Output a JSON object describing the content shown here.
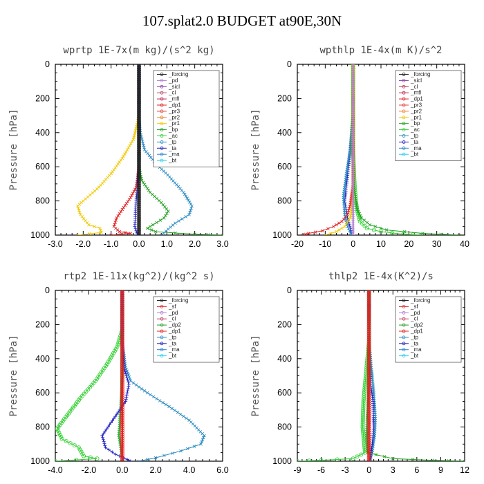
{
  "figure_title": "107.splat2.0  BUDGET at90E,30N",
  "chart_data": [
    {
      "type": "line",
      "title": "wprtp  1E-7x(m kg)/(s^2 kg)",
      "ylabel": "Pressure [hPa]",
      "xlim": [
        -3,
        3
      ],
      "ylim": [
        1000,
        0
      ],
      "xticks": [
        -3,
        -2,
        -1,
        0,
        1,
        2,
        3
      ],
      "xtick_labels": [
        "-3.0",
        "-2.0",
        "-1.0",
        "0.0",
        "1.0",
        "2.0",
        "3.0"
      ],
      "yticks": [
        0,
        200,
        400,
        600,
        800,
        1000
      ],
      "ytick_labels": [
        "0",
        "200",
        "400",
        "600",
        "800",
        "1000"
      ],
      "legend": [
        "_forcing",
        "_pd",
        "_sicl",
        "_cl",
        "_mfl",
        "_dp1",
        "_pr3",
        "_pr2",
        "_pr1",
        "_bp",
        "_ac",
        "_tp",
        "_ta",
        "_ma",
        "_bt"
      ],
      "series": [
        {
          "name": "_forcing",
          "color": "#222222",
          "marker": "circle",
          "x": [
            0,
            0
          ],
          "y": [
            0,
            1000
          ]
        },
        {
          "name": "_pr1",
          "color": "#f0c800",
          "marker": "x",
          "x": [
            0,
            0,
            -0.05,
            -0.2,
            -0.6,
            -1.0,
            -1.5,
            -2.0,
            -2.2,
            -2.1,
            -1.8,
            -1.4,
            -1.35,
            -2.2
          ],
          "y": [
            0,
            270,
            340,
            440,
            550,
            640,
            730,
            800,
            830,
            880,
            940,
            960,
            985,
            1000
          ]
        },
        {
          "name": "_dp1",
          "color": "#e02020",
          "marker": "x",
          "x": [
            0,
            0,
            -0.1,
            -0.3,
            -0.6,
            -0.8,
            -0.9,
            -0.7,
            -0.3,
            -1.0
          ],
          "y": [
            0,
            600,
            720,
            780,
            850,
            900,
            950,
            980,
            990,
            1000
          ]
        },
        {
          "name": "_bp",
          "color": "#20a020",
          "marker": "x",
          "x": [
            0,
            0,
            0.1,
            0.4,
            0.8,
            1.05,
            0.9,
            0.5,
            0.3,
            0.6,
            2.0,
            3.0
          ],
          "y": [
            0,
            600,
            680,
            750,
            810,
            860,
            900,
            940,
            960,
            980,
            995,
            1000
          ]
        },
        {
          "name": "_tp",
          "color": "#2a8ac0",
          "marker": "x",
          "x": [
            0,
            0,
            0.05,
            0.2,
            0.6,
            1.1,
            1.6,
            1.9,
            1.8,
            1.3,
            0.8
          ],
          "y": [
            0,
            300,
            400,
            500,
            580,
            660,
            750,
            830,
            880,
            930,
            1000
          ]
        },
        {
          "name": "_ta",
          "color": "#2020c0",
          "marker": "plus",
          "x": [
            0,
            0,
            -0.1,
            -0.15,
            -0.05
          ],
          "y": [
            0,
            600,
            800,
            950,
            1000
          ]
        }
      ]
    },
    {
      "type": "line",
      "title": "wpthlp  1E-4x(m K)/s^2",
      "ylabel": "Pressure [hPa]",
      "xlim": [
        -20,
        40
      ],
      "ylim": [
        1000,
        0
      ],
      "xticks": [
        -20,
        -10,
        0,
        10,
        20,
        30,
        40
      ],
      "xtick_labels": [
        "-20",
        "-10",
        "0",
        "10",
        "20",
        "30",
        "40"
      ],
      "yticks": [
        0,
        200,
        400,
        600,
        800,
        1000
      ],
      "ytick_labels": [
        "0",
        "200",
        "400",
        "600",
        "800",
        "1000"
      ],
      "legend": [
        "_forcing",
        "_sicl",
        "_cl",
        "_mfl",
        "_dp1",
        "_pr3",
        "_pr2",
        "_pr1",
        "_bp",
        "_ac",
        "_tp",
        "_ta",
        "_ma",
        "_bt"
      ],
      "series": [
        {
          "name": "_forcing",
          "color": "#b080d0",
          "marker": "plus",
          "x": [
            0,
            0
          ],
          "y": [
            0,
            1000
          ]
        },
        {
          "name": "_ta",
          "color": "#2020c0",
          "marker": "plus",
          "x": [
            0,
            0,
            -1,
            -2,
            -3,
            -2,
            -1,
            -0.5
          ],
          "y": [
            0,
            300,
            500,
            650,
            800,
            900,
            960,
            1000
          ]
        },
        {
          "name": "_tp",
          "color": "#2a8ac0",
          "marker": "x",
          "x": [
            0,
            0,
            -1,
            -2.5,
            -3.5,
            -3,
            -2,
            -0.5
          ],
          "y": [
            0,
            300,
            500,
            650,
            780,
            880,
            950,
            1000
          ]
        },
        {
          "name": "_ac",
          "color": "#30d030",
          "marker": "circle",
          "x": [
            0,
            0,
            0.5,
            1,
            1.5,
            2.5,
            5,
            10,
            18,
            25
          ],
          "y": [
            0,
            500,
            700,
            800,
            860,
            920,
            960,
            980,
            995,
            1000
          ]
        },
        {
          "name": "_bp",
          "color": "#20a020",
          "marker": "x",
          "x": [
            0,
            0,
            0.5,
            1.5,
            3,
            6,
            12,
            25,
            38
          ],
          "y": [
            0,
            600,
            750,
            850,
            900,
            940,
            970,
            990,
            1000
          ]
        },
        {
          "name": "_dp1",
          "color": "#e02020",
          "marker": "x",
          "x": [
            0,
            0,
            -1,
            -2,
            -4,
            -7,
            -11,
            -16,
            -18
          ],
          "y": [
            0,
            700,
            820,
            880,
            920,
            950,
            975,
            990,
            1000
          ]
        },
        {
          "name": "_pr1",
          "color": "#f0c800",
          "marker": "x",
          "x": [
            0,
            0,
            -1,
            -3,
            -6,
            -10
          ],
          "y": [
            0,
            800,
            900,
            950,
            980,
            1000
          ]
        }
      ]
    },
    {
      "type": "line",
      "title": "rtp2  1E-11x(kg^2)/(kg^2 s)",
      "ylabel": "Pressure [hPa]",
      "xlim": [
        -4,
        6
      ],
      "ylim": [
        1000,
        0
      ],
      "xticks": [
        -4,
        -2,
        0,
        2,
        4,
        6
      ],
      "xtick_labels": [
        "-4.0",
        "-2.0",
        "0.0",
        "2.0",
        "4.0",
        "6.0"
      ],
      "yticks": [
        0,
        200,
        400,
        600,
        800,
        1000
      ],
      "ytick_labels": [
        "0",
        "200",
        "400",
        "600",
        "800",
        "1000"
      ],
      "legend": [
        "_forcing",
        "_sf",
        "_pd",
        "_cl",
        "_dp2",
        "_dp1",
        "_tp",
        "_ta",
        "_ma",
        "_bt"
      ],
      "series": [
        {
          "name": "_forcing",
          "color": "#e02020",
          "marker": "circle",
          "x": [
            0,
            0
          ],
          "y": [
            0,
            1000
          ]
        },
        {
          "name": "_dp1",
          "color": "#30d030",
          "marker": "circle",
          "x": [
            0,
            0,
            -0.3,
            -0.9,
            -1.6,
            -2.5,
            -3.2,
            -3.9,
            -3.6,
            -2.6,
            -2.3,
            -1.5,
            -4.0
          ],
          "y": [
            0,
            230,
            330,
            430,
            530,
            630,
            720,
            810,
            870,
            920,
            970,
            985,
            1000
          ]
        },
        {
          "name": "_dp2",
          "color": "#20a020",
          "marker": "x",
          "x": [
            0,
            0,
            -0.1,
            -0.2,
            -0.05,
            0
          ],
          "y": [
            0,
            500,
            700,
            850,
            950,
            1000
          ]
        },
        {
          "name": "_tp",
          "color": "#2a8ac0",
          "marker": "x",
          "x": [
            0,
            0,
            0.2,
            0.5,
            1.5,
            2.8,
            4,
            4.9,
            4.7,
            3.5,
            2,
            1
          ],
          "y": [
            0,
            300,
            450,
            530,
            600,
            680,
            760,
            850,
            900,
            940,
            980,
            1000
          ]
        },
        {
          "name": "_ta",
          "color": "#2020c0",
          "marker": "plus",
          "x": [
            0,
            0,
            0.1,
            0.4,
            0.2,
            -0.5,
            -1.2,
            -1.0,
            -0.4,
            0.3,
            0.5
          ],
          "y": [
            0,
            300,
            450,
            550,
            650,
            750,
            850,
            920,
            960,
            990,
            1000
          ]
        }
      ]
    },
    {
      "type": "line",
      "title": "thlp2  1E-4x(K^2)/s",
      "ylabel": "Pressure [hPa]",
      "xlim": [
        -9,
        12
      ],
      "ylim": [
        1000,
        0
      ],
      "xticks": [
        -9,
        -6,
        -3,
        0,
        3,
        6,
        9,
        12
      ],
      "xtick_labels": [
        "-9",
        "-6",
        "-3",
        "0",
        "3",
        "6",
        "9",
        "12"
      ],
      "yticks": [
        0,
        200,
        400,
        600,
        800,
        1000
      ],
      "ytick_labels": [
        "0",
        "200",
        "400",
        "600",
        "800",
        "1000"
      ],
      "legend": [
        "_forcing",
        "_sf",
        "_pd",
        "_cl",
        "_dp2",
        "_dp1",
        "_tp",
        "_ta",
        "_ma",
        "_bt"
      ],
      "series": [
        {
          "name": "_forcing",
          "color": "#e02020",
          "marker": "circle",
          "x": [
            0,
            0
          ],
          "y": [
            0,
            1000
          ]
        },
        {
          "name": "_tp",
          "color": "#2a8ac0",
          "marker": "x",
          "x": [
            0,
            0,
            0.3,
            0.6,
            0.8,
            0.7,
            0.4,
            0.1
          ],
          "y": [
            0,
            300,
            450,
            600,
            750,
            850,
            950,
            1000
          ]
        },
        {
          "name": "_ta",
          "color": "#2020c0",
          "marker": "plus",
          "x": [
            0,
            0,
            0.2,
            0.5,
            0.6,
            0.4,
            0.1
          ],
          "y": [
            0,
            400,
            550,
            650,
            800,
            900,
            1000
          ]
        },
        {
          "name": "_dp1",
          "color": "#30d030",
          "marker": "circle",
          "x": [
            0,
            0,
            -0.4,
            -0.7,
            -0.8,
            -0.5,
            -2,
            -6,
            -9
          ],
          "y": [
            0,
            300,
            500,
            650,
            800,
            950,
            985,
            995,
            1000
          ]
        },
        {
          "name": "_dp2",
          "color": "#20a020",
          "marker": "x",
          "x": [
            0,
            0,
            -0.2,
            -0.3,
            -0.2,
            3,
            8,
            12
          ],
          "y": [
            0,
            500,
            700,
            850,
            950,
            985,
            995,
            1000
          ]
        }
      ]
    }
  ]
}
